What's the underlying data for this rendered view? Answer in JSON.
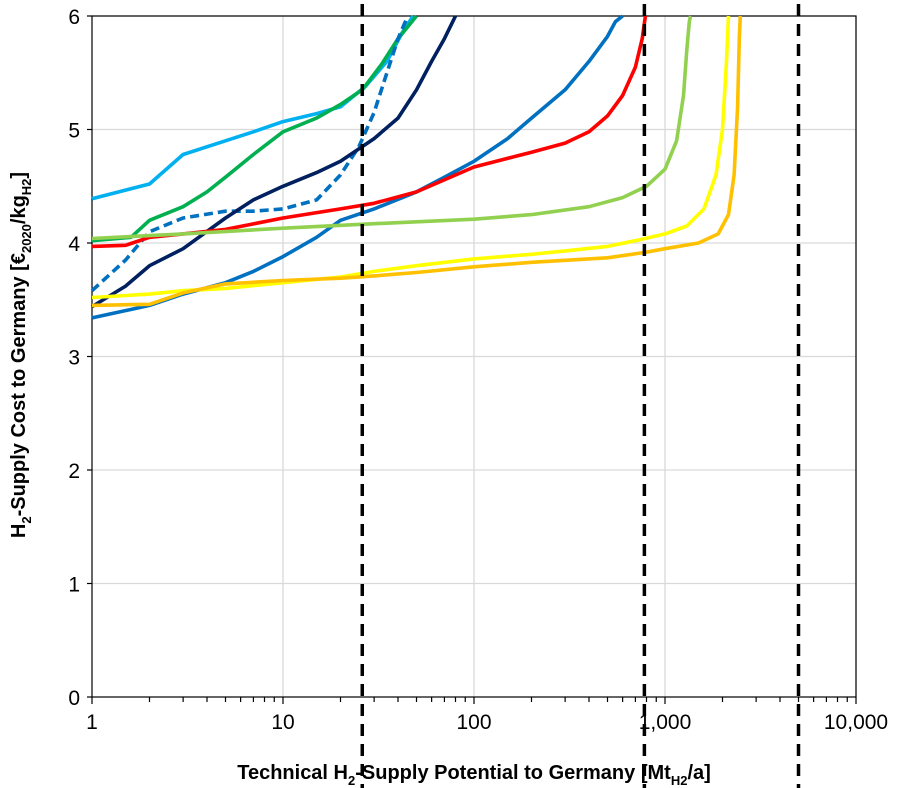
{
  "chart_data": {
    "type": "line",
    "title": "",
    "xlabel": {
      "parts": [
        "Technical H",
        "2",
        "-Supply Potential to Germany [Mt",
        "H2",
        "/a]"
      ]
    },
    "ylabel": {
      "parts": [
        "H",
        "2",
        "-Supply Cost to Germany [€",
        "2020",
        "/kg",
        "H2",
        "]"
      ]
    },
    "x_scale": "log",
    "xlim": [
      1,
      10000
    ],
    "ylim": [
      0,
      6
    ],
    "x_ticks": [
      1,
      10,
      100,
      1000,
      10000
    ],
    "x_tick_labels": [
      "1",
      "10",
      "100",
      "1,000",
      "10,000"
    ],
    "y_ticks": [
      0,
      1,
      2,
      3,
      4,
      5,
      6
    ],
    "y_tick_labels": [
      "0",
      "1",
      "2",
      "3",
      "4",
      "5",
      "6"
    ],
    "grid": true,
    "legend": "none",
    "vertical_reference_lines": [
      26,
      780,
      5000
    ],
    "series": [
      {
        "color": "#00b0f0",
        "dashed": false,
        "x": [
          1,
          2,
          3,
          5,
          7,
          10,
          15,
          20,
          27,
          35,
          42,
          48
        ],
        "y": [
          4.39,
          4.52,
          4.78,
          4.9,
          4.98,
          5.07,
          5.14,
          5.2,
          5.38,
          5.6,
          5.85,
          6.0
        ]
      },
      {
        "color": "#00b050",
        "dashed": false,
        "x": [
          1,
          1.6,
          2,
          3,
          4,
          5,
          7,
          10,
          15,
          20,
          26,
          33,
          40,
          50
        ],
        "y": [
          4.02,
          4.05,
          4.2,
          4.32,
          4.45,
          4.58,
          4.78,
          4.98,
          5.1,
          5.22,
          5.35,
          5.58,
          5.8,
          6.0
        ]
      },
      {
        "color": "#0070c0",
        "dashed": true,
        "x": [
          1,
          1.5,
          2,
          3,
          5,
          7,
          10,
          15,
          20,
          25,
          30,
          35,
          40,
          45
        ],
        "y": [
          3.58,
          3.85,
          4.1,
          4.22,
          4.28,
          4.28,
          4.3,
          4.38,
          4.6,
          4.85,
          5.15,
          5.5,
          5.8,
          6.0
        ]
      },
      {
        "color": "#002060",
        "dashed": false,
        "x": [
          1,
          1.5,
          2,
          3,
          5,
          7,
          10,
          15,
          20,
          30,
          40,
          50,
          60,
          70,
          80
        ],
        "y": [
          3.44,
          3.62,
          3.8,
          3.95,
          4.22,
          4.38,
          4.5,
          4.62,
          4.72,
          4.92,
          5.1,
          5.35,
          5.6,
          5.8,
          6.0
        ]
      },
      {
        "color": "#0070c0",
        "dashed": false,
        "x": [
          1,
          2,
          3,
          5,
          7,
          10,
          15,
          20,
          30,
          50,
          70,
          100,
          150,
          200,
          300,
          400,
          500,
          550,
          600
        ],
        "y": [
          3.34,
          3.45,
          3.55,
          3.65,
          3.75,
          3.88,
          4.05,
          4.2,
          4.3,
          4.45,
          4.58,
          4.72,
          4.92,
          5.1,
          5.35,
          5.6,
          5.82,
          5.95,
          6.0
        ]
      },
      {
        "color": "#ff0000",
        "dashed": false,
        "x": [
          1,
          1.5,
          2,
          3,
          5,
          10,
          20,
          30,
          50,
          100,
          200,
          300,
          400,
          500,
          600,
          700,
          760,
          790
        ],
        "y": [
          3.97,
          3.98,
          4.05,
          4.08,
          4.12,
          4.22,
          4.3,
          4.35,
          4.45,
          4.67,
          4.8,
          4.88,
          4.98,
          5.12,
          5.3,
          5.55,
          5.8,
          6.0
        ]
      },
      {
        "color": "#92d050",
        "dashed": false,
        "x": [
          1,
          3,
          10,
          30,
          100,
          200,
          400,
          600,
          800,
          1000,
          1150,
          1250,
          1300,
          1340,
          1360
        ],
        "y": [
          4.04,
          4.08,
          4.13,
          4.17,
          4.21,
          4.25,
          4.32,
          4.4,
          4.5,
          4.65,
          4.9,
          5.3,
          5.7,
          5.95,
          6.0
        ]
      },
      {
        "color": "#ffff00",
        "dashed": false,
        "x": [
          1,
          2,
          3,
          5,
          10,
          20,
          30,
          50,
          100,
          200,
          300,
          500,
          700,
          1000,
          1300,
          1600,
          1850,
          2000,
          2100,
          2150
        ],
        "y": [
          3.52,
          3.55,
          3.58,
          3.6,
          3.65,
          3.7,
          3.75,
          3.8,
          3.86,
          3.9,
          3.93,
          3.97,
          4.02,
          4.08,
          4.15,
          4.3,
          4.6,
          5.0,
          5.6,
          6.0
        ]
      },
      {
        "color": "#ffc000",
        "dashed": false,
        "x": [
          1,
          2,
          3,
          5,
          10,
          20,
          30,
          50,
          100,
          200,
          500,
          800,
          1000,
          1500,
          1900,
          2150,
          2300,
          2400,
          2450,
          2480
        ],
        "y": [
          3.45,
          3.46,
          3.56,
          3.64,
          3.67,
          3.69,
          3.71,
          3.74,
          3.79,
          3.83,
          3.87,
          3.92,
          3.95,
          4.0,
          4.08,
          4.25,
          4.6,
          5.2,
          5.8,
          6.0
        ]
      }
    ]
  }
}
